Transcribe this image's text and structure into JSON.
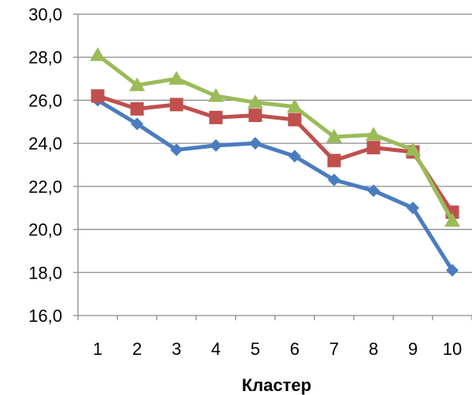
{
  "chart_data": {
    "type": "line",
    "title": "",
    "xlabel": "Кластер",
    "ylabel": "",
    "categories": [
      "1",
      "2",
      "3",
      "4",
      "5",
      "6",
      "7",
      "8",
      "9",
      "10"
    ],
    "ylim": [
      16.0,
      30.0
    ],
    "yticks": [
      "16,0",
      "18,0",
      "20,0",
      "22,0",
      "24,0",
      "26,0",
      "28,0",
      "30,0"
    ],
    "grid": true,
    "legend": "none",
    "series": [
      {
        "color": "#4a7cc0",
        "marker": "diamond",
        "values": [
          26.0,
          24.9,
          23.7,
          23.9,
          24.0,
          23.4,
          22.3,
          21.8,
          21.0,
          18.1
        ]
      },
      {
        "color": "#c0504d",
        "marker": "square",
        "values": [
          26.2,
          25.6,
          25.8,
          25.2,
          25.3,
          25.1,
          23.2,
          23.8,
          23.6,
          20.8
        ]
      },
      {
        "color": "#9bbb59",
        "marker": "triangle",
        "values": [
          28.1,
          26.7,
          27.0,
          26.2,
          25.9,
          25.7,
          24.3,
          24.4,
          23.7,
          20.4
        ]
      }
    ]
  }
}
